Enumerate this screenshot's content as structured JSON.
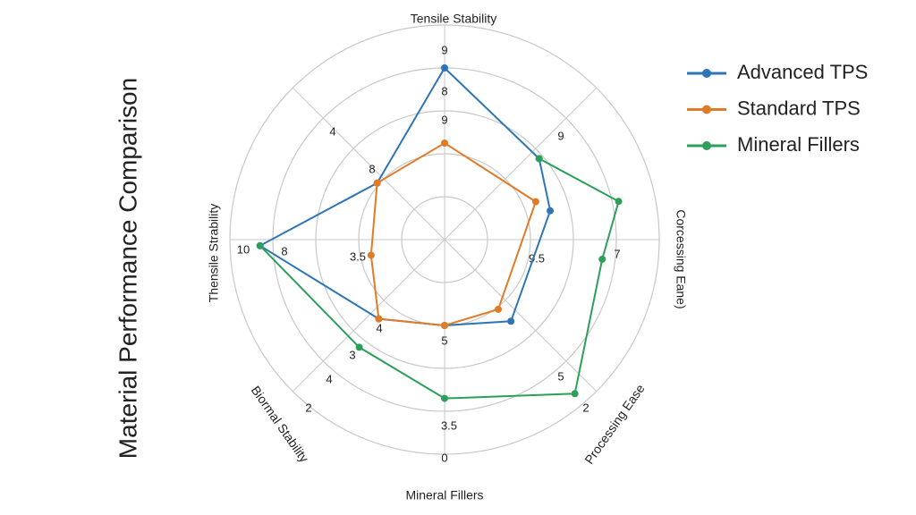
{
  "chart_data": {
    "type": "radar",
    "title": "Material Performance Comparison",
    "axis_labels": [
      "Tensile Stability",
      "Corcessing Eane)",
      "Processing Ease",
      "Mineral Fillers",
      "Biormal Stability",
      "Thensile Strability"
    ],
    "rlim": [
      0,
      10
    ],
    "rticks": [
      2,
      4,
      6,
      8,
      10
    ],
    "grid": true,
    "legend": "upper right",
    "series": [
      {
        "name": "Advanced TPS",
        "color": "#2e75b6",
        "closed": true,
        "theta": [
          0,
          49.4,
          74.7,
          140.9,
          180,
          219.7,
          268.1,
          310
        ],
        "values": [
          8.0,
          5.8,
          5.1,
          4.9,
          4.0,
          4.8,
          8.6,
          4.1
        ]
      },
      {
        "name": "Standard TPS",
        "color": "#e07b28",
        "closed": true,
        "theta": [
          0,
          67.4,
          142.4,
          180,
          219.7,
          258,
          310
        ],
        "values": [
          4.5,
          4.6,
          4.1,
          4.0,
          4.8,
          3.5,
          4.1
        ]
      },
      {
        "name": "Mineral Fillers",
        "color": "#2ca05a",
        "closed": false,
        "theta": [
          49.4,
          77.6,
          97.1,
          139.8,
          180,
          218.4,
          268.1
        ],
        "values": [
          5.8,
          8.3,
          7.4,
          9.4,
          7.4,
          6.4,
          8.6
        ]
      }
    ],
    "annotations": [
      "9",
      "8",
      "9",
      "4",
      "8",
      "9",
      "10",
      "8",
      "3.5",
      "9.5",
      "7",
      "4",
      "5",
      "3",
      "4",
      "2",
      "5",
      "2",
      "3.5",
      "0"
    ]
  }
}
